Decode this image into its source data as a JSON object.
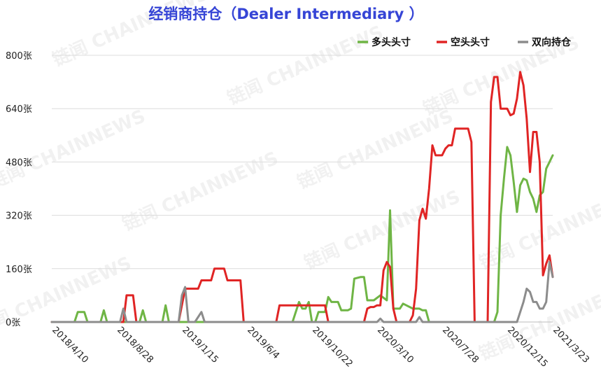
{
  "chart_data": {
    "type": "line",
    "title": "经销商持仓（Dealer Intermediary ）",
    "xlabel": "",
    "ylabel": "",
    "ylim": [
      0,
      800
    ],
    "y_ticks": [
      "0张",
      "160张",
      "320张",
      "480张",
      "640张",
      "800张"
    ],
    "y_tick_values": [
      0,
      160,
      320,
      480,
      640,
      800
    ],
    "x_ticks": [
      "2018/4/10",
      "2018/8/28",
      "2019/1/15",
      "2019/6/4",
      "2019/10/22",
      "2020/3/10",
      "2020/7/28",
      "2020/12/15",
      "2021/3/23"
    ],
    "x_tick_values": [
      "2018-04-10",
      "2018-08-28",
      "2019-01-15",
      "2019-06-04",
      "2019-10-22",
      "2020-03-10",
      "2020-07-28",
      "2020-12-15",
      "2021-03-23"
    ],
    "x_range": [
      "2018-04-10",
      "2021-03-23"
    ],
    "grid": true,
    "legend_position": "top-right",
    "watermark": "链闻 CHAINNEWS",
    "series": [
      {
        "name": "多头头寸",
        "color": "#6fb545",
        "points": [
          [
            "2018-04-10",
            0
          ],
          [
            "2018-05-29",
            0
          ],
          [
            "2018-06-05",
            30
          ],
          [
            "2018-06-19",
            30
          ],
          [
            "2018-06-26",
            0
          ],
          [
            "2018-07-24",
            0
          ],
          [
            "2018-07-31",
            35
          ],
          [
            "2018-08-07",
            0
          ],
          [
            "2018-10-16",
            0
          ],
          [
            "2018-10-23",
            35
          ],
          [
            "2018-10-30",
            0
          ],
          [
            "2018-12-04",
            0
          ],
          [
            "2018-12-11",
            50
          ],
          [
            "2018-12-18",
            0
          ],
          [
            "2019-09-10",
            0
          ],
          [
            "2019-09-24",
            60
          ],
          [
            "2019-10-01",
            40
          ],
          [
            "2019-10-08",
            40
          ],
          [
            "2019-10-15",
            60
          ],
          [
            "2019-10-22",
            0
          ],
          [
            "2019-10-29",
            0
          ],
          [
            "2019-11-05",
            30
          ],
          [
            "2019-11-19",
            30
          ],
          [
            "2019-11-26",
            75
          ],
          [
            "2019-12-03",
            60
          ],
          [
            "2019-12-17",
            60
          ],
          [
            "2019-12-24",
            35
          ],
          [
            "2020-01-07",
            35
          ],
          [
            "2020-01-14",
            40
          ],
          [
            "2020-01-21",
            130
          ],
          [
            "2020-02-04",
            135
          ],
          [
            "2020-02-11",
            135
          ],
          [
            "2020-02-18",
            65
          ],
          [
            "2020-03-03",
            65
          ],
          [
            "2020-03-17",
            80
          ],
          [
            "2020-03-31",
            65
          ],
          [
            "2020-04-07",
            335
          ],
          [
            "2020-04-14",
            40
          ],
          [
            "2020-04-28",
            40
          ],
          [
            "2020-05-05",
            55
          ],
          [
            "2020-05-12",
            50
          ],
          [
            "2020-05-26",
            40
          ],
          [
            "2020-06-09",
            40
          ],
          [
            "2020-06-16",
            35
          ],
          [
            "2020-06-23",
            35
          ],
          [
            "2020-06-30",
            0
          ],
          [
            "2020-11-03",
            0
          ],
          [
            "2020-11-17",
            0
          ],
          [
            "2020-11-24",
            30
          ],
          [
            "2020-12-01",
            320
          ],
          [
            "2020-12-08",
            430
          ],
          [
            "2020-12-15",
            525
          ],
          [
            "2020-12-22",
            500
          ],
          [
            "2020-12-29",
            420
          ],
          [
            "2021-01-05",
            330
          ],
          [
            "2021-01-12",
            410
          ],
          [
            "2021-01-19",
            430
          ],
          [
            "2021-01-26",
            425
          ],
          [
            "2021-02-02",
            390
          ],
          [
            "2021-02-09",
            370
          ],
          [
            "2021-02-16",
            330
          ],
          [
            "2021-02-23",
            380
          ],
          [
            "2021-03-02",
            390
          ],
          [
            "2021-03-09",
            460
          ],
          [
            "2021-03-16",
            480
          ],
          [
            "2021-03-23",
            500
          ]
        ]
      },
      {
        "name": "空头头寸",
        "color": "#e02424",
        "points": [
          [
            "2018-04-10",
            0
          ],
          [
            "2018-06-05",
            0
          ],
          [
            "2018-06-19",
            0
          ],
          [
            "2018-09-11",
            0
          ],
          [
            "2018-09-18",
            80
          ],
          [
            "2018-10-02",
            80
          ],
          [
            "2018-10-09",
            0
          ],
          [
            "2019-01-08",
            0
          ],
          [
            "2019-01-22",
            100
          ],
          [
            "2019-02-19",
            100
          ],
          [
            "2019-02-26",
            125
          ],
          [
            "2019-03-19",
            125
          ],
          [
            "2019-03-26",
            160
          ],
          [
            "2019-04-16",
            160
          ],
          [
            "2019-04-23",
            125
          ],
          [
            "2019-05-21",
            125
          ],
          [
            "2019-05-28",
            0
          ],
          [
            "2019-07-09",
            0
          ],
          [
            "2019-07-16",
            0
          ],
          [
            "2019-08-06",
            0
          ],
          [
            "2019-08-13",
            50
          ],
          [
            "2019-09-10",
            50
          ],
          [
            "2019-09-17",
            50
          ],
          [
            "2019-10-01",
            50
          ],
          [
            "2019-10-08",
            50
          ],
          [
            "2019-11-19",
            50
          ],
          [
            "2019-11-26",
            0
          ],
          [
            "2020-01-28",
            0
          ],
          [
            "2020-02-04",
            0
          ],
          [
            "2020-02-11",
            0
          ],
          [
            "2020-02-18",
            40
          ],
          [
            "2020-02-25",
            45
          ],
          [
            "2020-03-03",
            45
          ],
          [
            "2020-03-10",
            50
          ],
          [
            "2020-03-17",
            50
          ],
          [
            "2020-03-24",
            155
          ],
          [
            "2020-03-31",
            180
          ],
          [
            "2020-04-07",
            165
          ],
          [
            "2020-04-14",
            40
          ],
          [
            "2020-04-21",
            0
          ],
          [
            "2020-05-19",
            0
          ],
          [
            "2020-05-26",
            20
          ],
          [
            "2020-06-02",
            100
          ],
          [
            "2020-06-09",
            305
          ],
          [
            "2020-06-16",
            340
          ],
          [
            "2020-06-23",
            310
          ],
          [
            "2020-06-30",
            400
          ],
          [
            "2020-07-07",
            530
          ],
          [
            "2020-07-14",
            500
          ],
          [
            "2020-07-28",
            500
          ],
          [
            "2020-08-04",
            520
          ],
          [
            "2020-08-11",
            530
          ],
          [
            "2020-08-18",
            530
          ],
          [
            "2020-08-25",
            580
          ],
          [
            "2020-09-22",
            580
          ],
          [
            "2020-09-29",
            540
          ],
          [
            "2020-10-06",
            0
          ],
          [
            "2020-10-13",
            0
          ],
          [
            "2020-11-03",
            0
          ],
          [
            "2020-11-10",
            660
          ],
          [
            "2020-11-17",
            735
          ],
          [
            "2020-11-24",
            735
          ],
          [
            "2020-12-01",
            640
          ],
          [
            "2020-12-15",
            640
          ],
          [
            "2020-12-22",
            620
          ],
          [
            "2020-12-29",
            625
          ],
          [
            "2021-01-05",
            670
          ],
          [
            "2021-01-12",
            750
          ],
          [
            "2021-01-19",
            710
          ],
          [
            "2021-01-26",
            610
          ],
          [
            "2021-02-02",
            450
          ],
          [
            "2021-02-09",
            570
          ],
          [
            "2021-02-16",
            570
          ],
          [
            "2021-02-23",
            480
          ],
          [
            "2021-03-02",
            140
          ],
          [
            "2021-03-09",
            175
          ],
          [
            "2021-03-16",
            200
          ],
          [
            "2021-03-23",
            135
          ]
        ]
      },
      {
        "name": "双向持仓",
        "color": "#8c8c8c",
        "points": [
          [
            "2018-04-10",
            0
          ],
          [
            "2018-09-04",
            0
          ],
          [
            "2018-09-11",
            40
          ],
          [
            "2018-09-18",
            0
          ],
          [
            "2019-01-08",
            0
          ],
          [
            "2019-01-15",
            80
          ],
          [
            "2019-01-22",
            105
          ],
          [
            "2019-01-29",
            0
          ],
          [
            "2019-02-12",
            0
          ],
          [
            "2019-02-26",
            30
          ],
          [
            "2019-03-05",
            0
          ],
          [
            "2020-03-10",
            0
          ],
          [
            "2020-03-17",
            10
          ],
          [
            "2020-03-24",
            0
          ],
          [
            "2020-06-02",
            0
          ],
          [
            "2020-06-09",
            15
          ],
          [
            "2020-06-16",
            0
          ],
          [
            "2021-01-05",
            0
          ],
          [
            "2021-01-19",
            60
          ],
          [
            "2021-01-26",
            100
          ],
          [
            "2021-02-02",
            90
          ],
          [
            "2021-02-09",
            60
          ],
          [
            "2021-02-16",
            60
          ],
          [
            "2021-02-23",
            40
          ],
          [
            "2021-03-02",
            40
          ],
          [
            "2021-03-09",
            60
          ],
          [
            "2021-03-16",
            180
          ],
          [
            "2021-03-23",
            135
          ]
        ]
      }
    ]
  }
}
